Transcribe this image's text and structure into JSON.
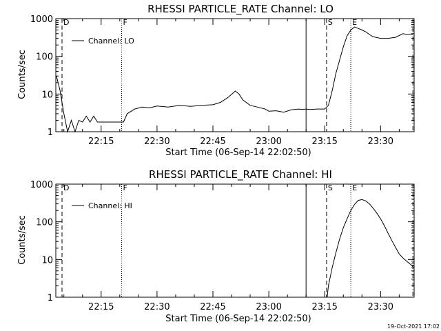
{
  "footer": {
    "timestamp": "19-Oct-2021 17:02"
  },
  "chart_data": [
    {
      "type": "line",
      "title": "RHESSI PARTICLE_RATE Channel: LO",
      "xlabel": "Start Time (06-Sep-14 22:02:50)",
      "ylabel": "Counts/sec",
      "y_scale": "log",
      "ylim": [
        1,
        1000
      ],
      "xlim": [
        "22:02:50",
        "23:39:00"
      ],
      "x_ticks": [
        "22:15",
        "22:30",
        "22:45",
        "23:00",
        "23:15",
        "23:30"
      ],
      "y_ticks": [
        "1",
        "10",
        "100",
        "1000"
      ],
      "legend": {
        "placement": "top-left",
        "entries": [
          "Channel: LO"
        ]
      },
      "markers": [
        {
          "label": "D",
          "time": "22:04:30",
          "style": "dashed"
        },
        {
          "label": "F",
          "time": "22:20:30",
          "style": "dotted"
        },
        {
          "label": "",
          "time": "23:10:00",
          "style": "solid"
        },
        {
          "label": "S",
          "time": "23:15:30",
          "style": "dashed"
        },
        {
          "label": "E",
          "time": "23:22:00",
          "style": "dotted"
        },
        {
          "label": "",
          "time": "23:38:40",
          "style": "dashdot"
        }
      ],
      "series": [
        {
          "name": "Channel: LO",
          "x": [
            "22:03",
            "22:04",
            "22:05",
            "22:06",
            "22:07",
            "22:08",
            "22:09",
            "22:10",
            "22:11",
            "22:12",
            "22:13",
            "22:14",
            "22:15",
            "22:16",
            "22:17",
            "22:18",
            "22:19",
            "22:20",
            "22:21",
            "22:22",
            "22:24",
            "22:26",
            "22:28",
            "22:30",
            "22:33",
            "22:36",
            "22:39",
            "22:42",
            "22:45",
            "22:47",
            "22:49",
            "22:51",
            "22:52",
            "22:53",
            "22:55",
            "22:57",
            "22:59",
            "23:00",
            "23:02",
            "23:04",
            "23:06",
            "23:08",
            "23:09",
            "23:10",
            "23:11",
            "23:13",
            "23:15",
            "23:16",
            "23:17",
            "23:18",
            "23:19",
            "23:20",
            "23:21",
            "23:22",
            "23:23",
            "23:24",
            "23:25",
            "23:26",
            "23:27",
            "23:28",
            "23:30",
            "23:32",
            "23:34",
            "23:36",
            "23:37",
            "23:38",
            "23:38:40"
          ],
          "values": [
            30,
            12,
            3,
            1,
            2,
            1,
            2,
            1.8,
            2.6,
            1.8,
            2.6,
            1.8,
            1.8,
            1.8,
            1.8,
            1.8,
            1.8,
            1.8,
            1.8,
            3,
            4,
            4.5,
            4.3,
            4.8,
            4.5,
            5,
            4.7,
            5,
            5.2,
            6,
            8,
            12,
            10,
            7,
            5,
            4.5,
            4,
            3.5,
            3.6,
            3.3,
            3.8,
            4,
            3.9,
            4,
            3.9,
            4,
            4,
            5,
            12,
            35,
            80,
            180,
            350,
            500,
            600,
            550,
            500,
            450,
            380,
            330,
            300,
            300,
            320,
            400,
            380,
            390,
            380
          ]
        }
      ]
    },
    {
      "type": "line",
      "title": "RHESSI PARTICLE_RATE Channel: HI",
      "xlabel": "Start Time (06-Sep-14 22:02:50)",
      "ylabel": "Counts/sec",
      "y_scale": "log",
      "ylim": [
        1,
        1000
      ],
      "xlim": [
        "22:02:50",
        "23:39:00"
      ],
      "x_ticks": [
        "22:15",
        "22:30",
        "22:45",
        "23:00",
        "23:15",
        "23:30"
      ],
      "y_ticks": [
        "1",
        "10",
        "100",
        "1000"
      ],
      "legend": {
        "placement": "top-left",
        "entries": [
          "Channel: HI"
        ]
      },
      "markers": [
        {
          "label": "D",
          "time": "22:04:30",
          "style": "dashed"
        },
        {
          "label": "F",
          "time": "22:20:30",
          "style": "dotted"
        },
        {
          "label": "",
          "time": "23:10:00",
          "style": "solid"
        },
        {
          "label": "S",
          "time": "23:15:30",
          "style": "dashed"
        },
        {
          "label": "E",
          "time": "23:22:00",
          "style": "dotted"
        },
        {
          "label": "",
          "time": "23:38:40",
          "style": "dashdot"
        }
      ],
      "series": [
        {
          "name": "Channel: HI",
          "x": [
            "23:15:40",
            "23:16",
            "23:17",
            "23:18",
            "23:19",
            "23:20",
            "23:21",
            "23:22",
            "23:23",
            "23:24",
            "23:25",
            "23:26",
            "23:27",
            "23:28",
            "23:29",
            "23:30",
            "23:31",
            "23:32",
            "23:33",
            "23:34",
            "23:35",
            "23:36",
            "23:37",
            "23:38",
            "23:38:40"
          ],
          "values": [
            1,
            2,
            6,
            15,
            35,
            70,
            120,
            200,
            290,
            370,
            390,
            360,
            300,
            230,
            170,
            120,
            80,
            50,
            32,
            21,
            14,
            11,
            9,
            7.5,
            6.5
          ]
        }
      ]
    }
  ]
}
